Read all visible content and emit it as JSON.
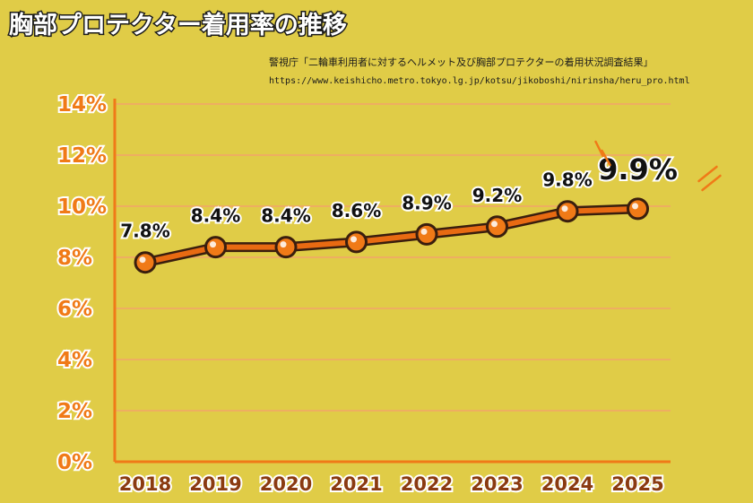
{
  "header": {
    "title": "胸部プロテクター着用率の推移",
    "source": "警視庁「二輪車利用者に対するヘルメット及び胸部プロテクターの着用状況調査結果」",
    "url": "https://www.keishicho.metro.tokyo.lg.jp/kotsu/jikoboshi/nirinsha/heru_pro.html"
  },
  "colors": {
    "background": "#e0cc47",
    "axis": "#f07a17",
    "line": "#e86a12",
    "marker": "#f07a17",
    "grid": "#f2a36a"
  },
  "chart_data": {
    "type": "line",
    "title": "胸部プロテクター着用率の推移",
    "categories": [
      "2018",
      "2019",
      "2020",
      "2021",
      "2022",
      "2023",
      "2024",
      "2025"
    ],
    "values": [
      7.8,
      8.4,
      8.4,
      8.6,
      8.9,
      9.2,
      9.8,
      9.9
    ],
    "data_labels": [
      "7.8%",
      "8.4%",
      "8.4%",
      "8.6%",
      "8.9%",
      "9.2%",
      "9.8%",
      "9.9%"
    ],
    "yticks": [
      0,
      2,
      4,
      6,
      8,
      10,
      12,
      14
    ],
    "ytick_labels": [
      "0%",
      "2%",
      "4%",
      "6%",
      "8%",
      "10%",
      "12%",
      "14%"
    ],
    "ylim": [
      0,
      14
    ],
    "xlabel": "",
    "ylabel": "",
    "grid": true,
    "legend": "none"
  }
}
